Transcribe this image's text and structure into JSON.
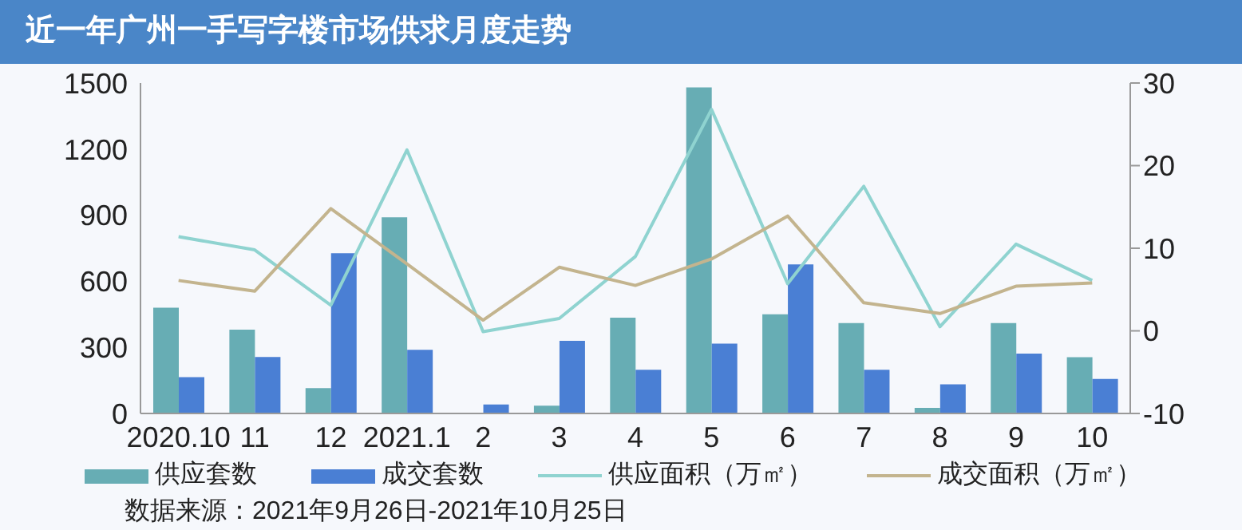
{
  "chart_data": {
    "type": "bar",
    "title": "近一年广州一手写字楼市场供求月度走势",
    "categories": [
      "2020.10",
      "11",
      "12",
      "2021.1",
      "2",
      "3",
      "4",
      "5",
      "6",
      "7",
      "8",
      "9",
      "10"
    ],
    "series": [
      {
        "name": "供应套数",
        "color": "#67adb4",
        "values": [
          480,
          380,
          115,
          890,
          0,
          35,
          435,
          1480,
          450,
          410,
          25,
          410,
          255
        ]
      },
      {
        "name": "成交套数",
        "color": "#4a7fd4",
        "values": [
          165,
          256,
          727,
          289,
          41,
          330,
          198,
          317,
          677,
          198,
          132,
          272,
          157
        ]
      },
      {
        "name": "供应面积（万㎡）",
        "type": "line",
        "axis": "y2",
        "color": "#8fd3d0",
        "values": [
          11.4,
          9.8,
          3.1,
          21.9,
          -0.1,
          1.5,
          9.0,
          26.8,
          5.7,
          17.5,
          0.5,
          10.5,
          6.1
        ]
      },
      {
        "name": "成交面积（万㎡）",
        "type": "line",
        "axis": "y2",
        "color": "#c3b48e",
        "values": [
          6.1,
          4.8,
          14.8,
          8.1,
          1.3,
          7.7,
          5.5,
          8.7,
          13.9,
          3.4,
          2.1,
          5.4,
          5.8
        ]
      }
    ],
    "ylim": [
      0,
      1500
    ],
    "yticks": [
      0,
      300,
      600,
      900,
      1200,
      1500
    ],
    "y2lim": [
      -10,
      30
    ],
    "y2ticks": [
      -10,
      0,
      10,
      20,
      30
    ],
    "grid": false,
    "legend": "bottom",
    "marker": "none",
    "line_style": "solid",
    "annotations": [
      "数据来源：2021年9月26日-2021年10月25日"
    ]
  }
}
